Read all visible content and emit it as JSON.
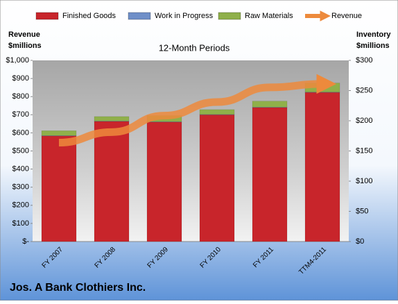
{
  "chart_data": {
    "type": "bar",
    "title": "12-Month Periods",
    "ylabel": [
      "Revenue",
      "$millions"
    ],
    "y2label": [
      "Inventory",
      "$millions"
    ],
    "footer": "Jos. A Bank Clothiers Inc.",
    "categories": [
      "FY 2007",
      "FY 2008",
      "FY 2009",
      "FY 2010",
      "FY 2011",
      "TTM4-2011"
    ],
    "series": [
      {
        "name": "Finished Goods",
        "color": "#c8252b",
        "axis": "y2",
        "values": [
          175,
          199,
          198,
          210,
          222,
          247
        ]
      },
      {
        "name": "Work in Progress",
        "color": "#6f8fc8",
        "axis": "y2",
        "values": [
          0.5,
          0.5,
          0.5,
          0.5,
          0.5,
          0.5
        ]
      },
      {
        "name": "Raw Materials",
        "color": "#8fb04a",
        "axis": "y2",
        "values": [
          8,
          7.5,
          10,
          8,
          10,
          15
        ]
      },
      {
        "name": "Revenue",
        "color": "#ed8a3c",
        "type": "line",
        "values": [
          546,
          604,
          695,
          770,
          851,
          870
        ]
      }
    ],
    "ylim": [
      0,
      1000
    ],
    "yticks": [
      {
        "value": 0,
        "label": "$-"
      },
      {
        "value": 100,
        "label": "$100"
      },
      {
        "value": 200,
        "label": "$200"
      },
      {
        "value": 300,
        "label": "$300"
      },
      {
        "value": 400,
        "label": "$400"
      },
      {
        "value": 500,
        "label": "$500"
      },
      {
        "value": 600,
        "label": "$600"
      },
      {
        "value": 700,
        "label": "$700"
      },
      {
        "value": 800,
        "label": "$800"
      },
      {
        "value": 900,
        "label": "$900"
      },
      {
        "value": 1000,
        "label": "$1,000"
      }
    ],
    "y2lim": [
      0,
      300
    ],
    "y2ticks": [
      {
        "value": 0,
        "label": "$0"
      },
      {
        "value": 50,
        "label": "$50"
      },
      {
        "value": 100,
        "label": "$100"
      },
      {
        "value": 150,
        "label": "$150"
      },
      {
        "value": 200,
        "label": "$200"
      },
      {
        "value": 250,
        "label": "$250"
      },
      {
        "value": 300,
        "label": "$300"
      }
    ],
    "grid": false,
    "legend": "top"
  }
}
